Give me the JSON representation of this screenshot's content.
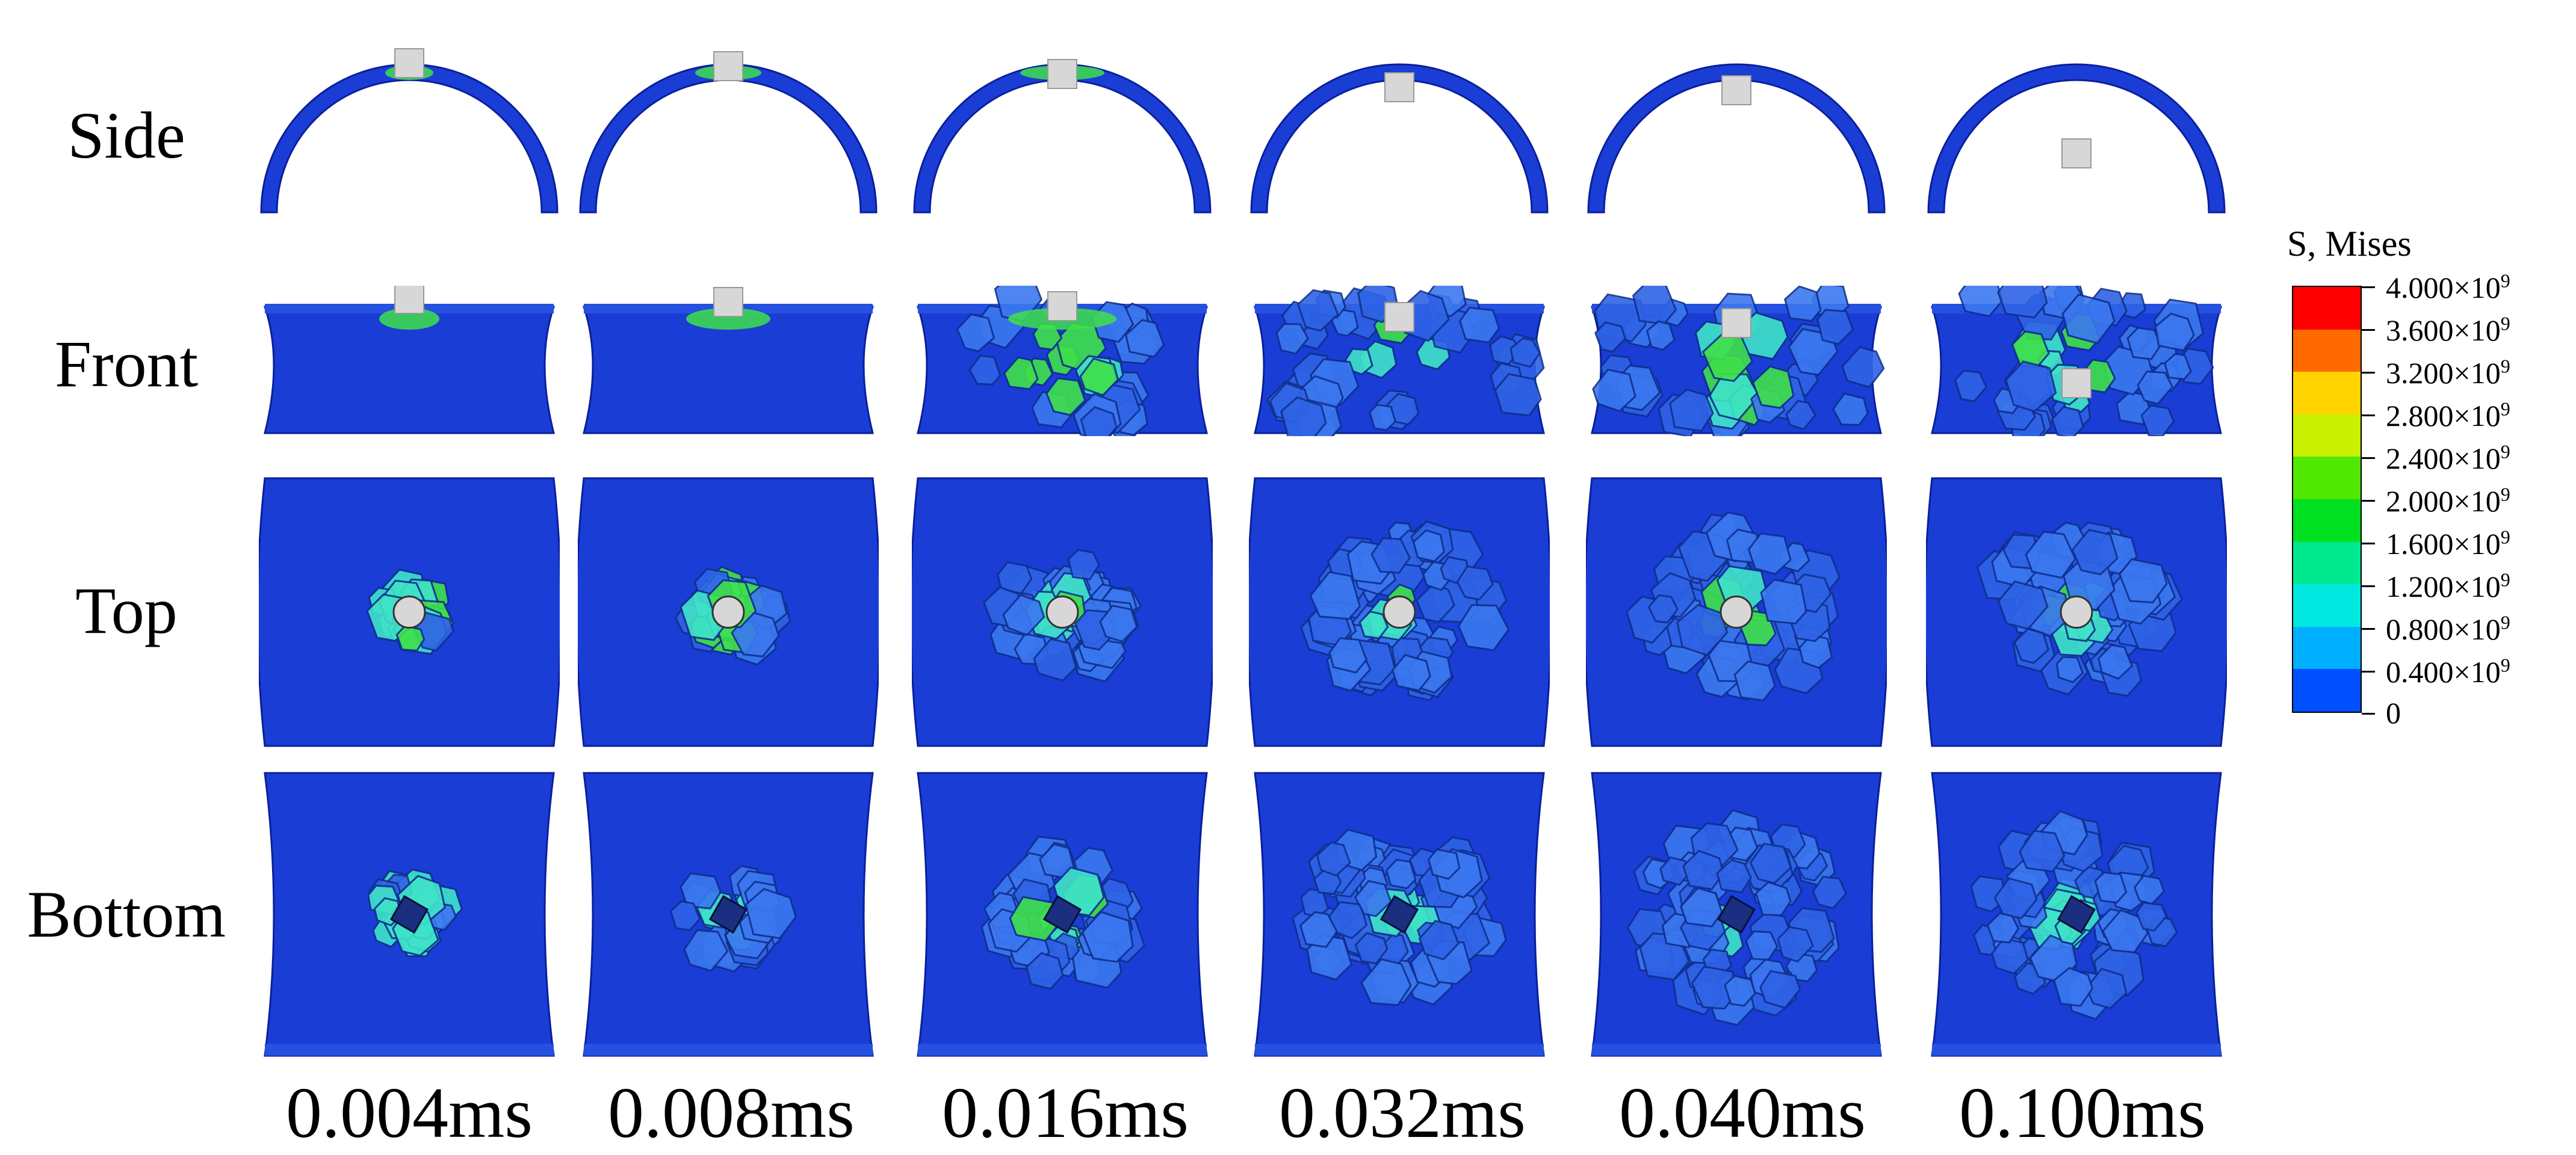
{
  "row_labels": [
    "Side",
    "Front",
    "Top",
    "Bottom"
  ],
  "time_labels": [
    "0.004ms",
    "0.008ms",
    "0.016ms",
    "0.032ms",
    "0.040ms",
    "0.100ms"
  ],
  "legend": {
    "title": "S, Mises",
    "ticks": [
      {
        "mantissa": "4.000",
        "exp": "9"
      },
      {
        "mantissa": "3.600",
        "exp": "9"
      },
      {
        "mantissa": "3.200",
        "exp": "9"
      },
      {
        "mantissa": "2.800",
        "exp": "9"
      },
      {
        "mantissa": "2.400",
        "exp": "9"
      },
      {
        "mantissa": "2.000",
        "exp": "9"
      },
      {
        "mantissa": "1.600",
        "exp": "9"
      },
      {
        "mantissa": "1.200",
        "exp": "9"
      },
      {
        "mantissa": "0.800",
        "exp": "9"
      },
      {
        "mantissa": "0.400",
        "exp": "9"
      },
      {
        "mantissa": "0",
        "exp": ""
      }
    ],
    "colors": [
      "#ff0000",
      "#ff6a00",
      "#ffd400",
      "#c8f000",
      "#50e800",
      "#00e020",
      "#00e890",
      "#00e8e0",
      "#00b0ff",
      "#0050ff"
    ]
  },
  "colors": {
    "shell": "#1a3dd6",
    "shell_dark": "#0a1f9a",
    "cell": "#3b78f0",
    "cell_edge": "#10308f",
    "hot_green": "#3fe04a",
    "hot_cyan": "#3fe3c8",
    "projectile": "#d7d7d7"
  }
}
